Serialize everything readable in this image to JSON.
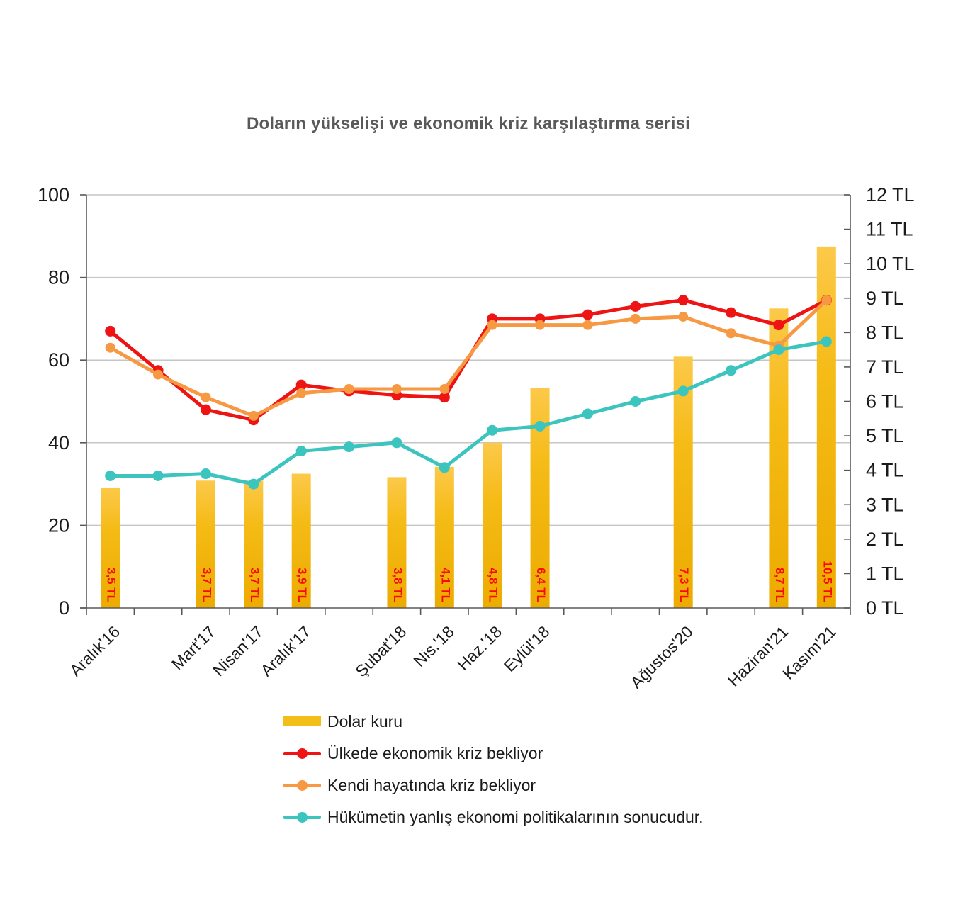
{
  "title": "Doların yükselişi ve ekonomik kriz karşılaştırma serisi",
  "colors": {
    "red": "#EE1414",
    "orange": "#F79843",
    "teal": "#3CC4BF",
    "bar_top": "#FCC94A",
    "bar_mid": "#F5BB16",
    "bar_bottom": "#ECAB00",
    "bar_label": "#FA0A0A",
    "legend_bar_swatch": "#F2BE18",
    "grid": "#C6C6C6",
    "axis_line": "#595959",
    "tick_text": "#1A1A1A",
    "title_text": "#595959"
  },
  "legend": {
    "items": [
      {
        "label": "Dolar kuru",
        "type": "bar",
        "color_key": "bar_mid"
      },
      {
        "label": "Ülkede ekonomik kriz bekliyor",
        "type": "line",
        "color_key": "red"
      },
      {
        "label": "Kendi hayatında kriz bekliyor",
        "type": "line",
        "color_key": "orange"
      },
      {
        "label": "Hükümetin yanlış ekonomi politikalarının sonucudur.",
        "type": "line",
        "color_key": "teal"
      }
    ]
  },
  "chart_data": {
    "type": "combo bar+line",
    "title": "Doların yükselişi ve ekonomik kriz karşılaştırma serisi",
    "xlabel": "",
    "ylabel": "",
    "grid": "horizontal",
    "legend_position": "bottom-left",
    "categories": [
      "Aralık'16",
      "",
      "Mart'17",
      "Nisan'17",
      "Aralık'17",
      "",
      "Şubat'18",
      "Nis.'18",
      "Haz.'18",
      "Eylül'18",
      "",
      "",
      "Ağustos'20",
      "",
      "Haziran'21",
      "Kasım'21"
    ],
    "left_axis": {
      "range": [
        0,
        100
      ],
      "ticks": [
        0,
        20,
        40,
        60,
        80,
        100
      ],
      "tick_labels": [
        "0",
        "20",
        "40",
        "60",
        "80",
        "100"
      ]
    },
    "right_axis": {
      "range_tl": [
        0,
        12
      ],
      "ticks_tl": [
        0,
        1,
        2,
        3,
        4,
        5,
        6,
        7,
        8,
        9,
        10,
        11,
        12
      ],
      "tick_labels": [
        "0 TL",
        "1 TL",
        "2 TL",
        "3 TL",
        "4 TL",
        "5 TL",
        "6 TL",
        "7 TL",
        "8 TL",
        "9 TL",
        "10 TL",
        "11 TL",
        "12 TL"
      ]
    },
    "bar_series": {
      "name": "Dolar kuru",
      "axis": "right",
      "unit": "TL",
      "values": [
        3.5,
        null,
        3.7,
        3.7,
        3.9,
        null,
        3.8,
        4.1,
        4.8,
        6.4,
        null,
        null,
        7.3,
        null,
        8.7,
        10.5
      ],
      "labels": [
        "3,5 TL",
        null,
        "3,7 TL",
        "3,7 TL",
        "3,9 TL",
        null,
        "3,8 TL",
        "4,1 TL",
        "4,8 TL",
        "6,4 TL",
        null,
        null,
        "7,3 TL",
        null,
        "8,7 TL",
        "10,5 TL"
      ]
    },
    "line_series": [
      {
        "name": "Ülkede ekonomik kriz bekliyor",
        "key": "red",
        "axis": "left",
        "values": [
          67,
          57.5,
          48,
          45.5,
          54,
          52.5,
          51.5,
          51,
          70,
          70,
          71,
          73,
          74.5,
          71.5,
          68.5,
          74.5
        ]
      },
      {
        "name": "Kendi hayatında kriz bekliyor",
        "key": "orange",
        "axis": "left",
        "values": [
          63,
          56.5,
          51,
          46.5,
          52,
          53,
          53,
          53,
          68.5,
          68.5,
          68.5,
          70,
          70.5,
          66.5,
          63.5,
          74.5
        ]
      },
      {
        "name": "Hükümetin yanlış ekonomi politikalarının sonucudur.",
        "key": "teal",
        "axis": "left",
        "values": [
          32,
          32,
          32.5,
          30,
          38,
          39,
          40,
          34,
          43,
          44,
          47,
          50,
          52.5,
          57.5,
          62.5,
          64.5
        ]
      }
    ]
  }
}
